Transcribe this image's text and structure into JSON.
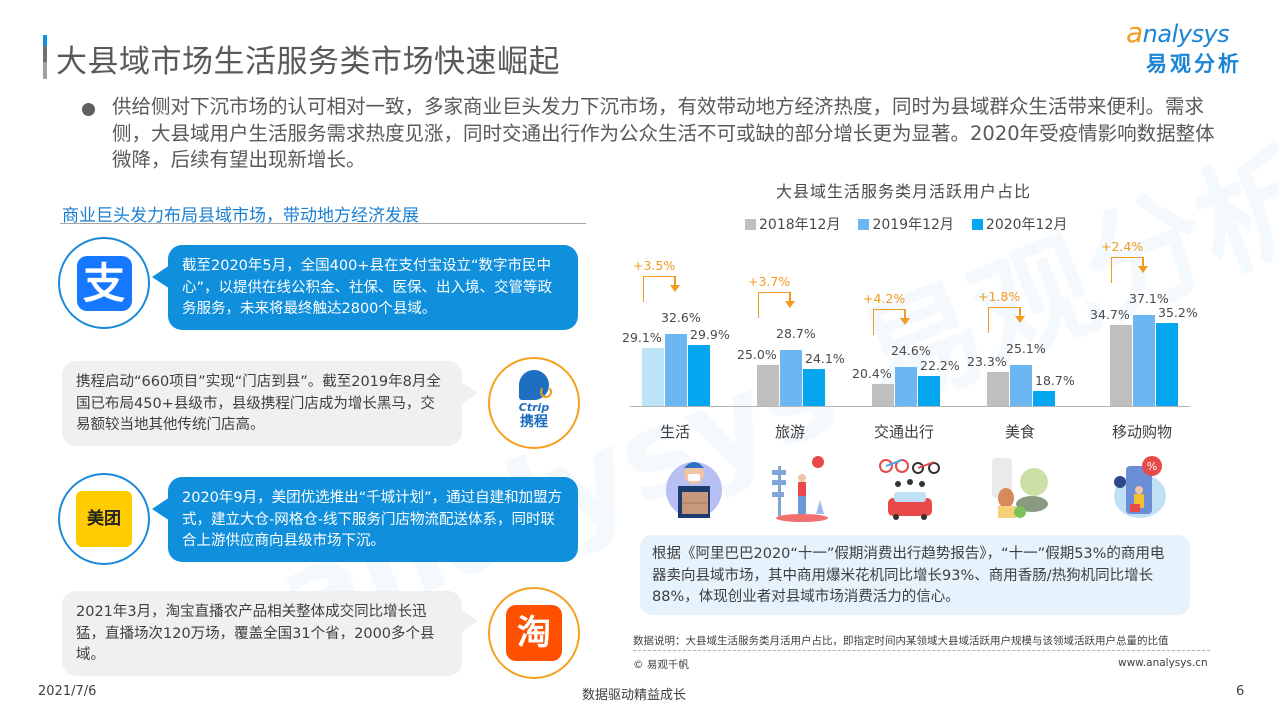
{
  "header": {
    "title": "大县域市场生活服务类市场快速崛起",
    "logo_en": "nalysys",
    "logo_en_initial": "a",
    "logo_cn": "易观分析"
  },
  "intro": {
    "text": "供给侧对下沉市场的认可相对一致，多家商业巨头发力下沉市场，有效带动地方经济热度，同时为县域群众生活带来便利。需求侧，大县域用户生活服务需求热度见涨，同时交通出行作为公众生活不可或缺的部分增长更为显著。2020年受疫情影响数据整体微降，后续有望出现新增长。"
  },
  "left_panel": {
    "section_title": "商业巨头发力布局县域市场，带动地方经济发展",
    "cases": [
      {
        "brand": "alipay",
        "icon_glyph": "支",
        "text": "截至2020年5月，全国400+县在支付宝设立“数字市民中心”，以提供在线公积金、社保、医保、出入境、交管等政务服务，未来将最终触达2800个县域。"
      },
      {
        "brand": "ctrip",
        "icon_en": "Ctrip",
        "icon_cn": "携程",
        "text": "携程启动“660项目”实现“门店到县”。截至2019年8月全国已布局450+县级市，县级携程门店成为增长黑马，交易额较当地其他传统门店高。"
      },
      {
        "brand": "meituan",
        "icon_glyph": "美团",
        "text": "2020年9月，美团优选推出“千城计划”，通过自建和加盟方式，建立大仓-网格仓-线下服务门店物流配送体系，同时联合上游供应商向县级市场下沉。"
      },
      {
        "brand": "taobao",
        "icon_glyph": "淘",
        "text": "2021年3月，淘宝直播农产品相关整体成交同比增长迅猛，直播场次120万场，覆盖全国31个省，2000多个县域。"
      }
    ]
  },
  "chart_data": {
    "type": "bar",
    "title": "大县域生活服务类月活跃用户占比",
    "categories": [
      "生活",
      "旅游",
      "交通出行",
      "美食",
      "移动购物"
    ],
    "series": [
      {
        "name": "2018年12月",
        "color": "#bfbfbf",
        "values": [
          29.1,
          25.0,
          20.4,
          23.3,
          34.7
        ]
      },
      {
        "name": "2019年12月",
        "color": "#6cb7f2",
        "values": [
          32.6,
          28.7,
          24.6,
          25.1,
          37.1
        ]
      },
      {
        "name": "2020年12月",
        "color": "#05a6f0",
        "values": [
          29.9,
          24.1,
          22.2,
          18.7,
          35.2
        ]
      }
    ],
    "value_labels": {
      "s0": [
        "29.1%",
        "25.0%",
        "20.4%",
        "23.3%",
        "34.7%"
      ],
      "s1": [
        "32.6%",
        "28.7%",
        "24.6%",
        "25.1%",
        "37.1%"
      ],
      "s2": [
        "29.9%",
        "24.1%",
        "22.2%",
        "18.7%",
        "35.2%"
      ]
    },
    "growth_annotations": [
      "+3.5%",
      "+3.7%",
      "+4.2%",
      "+1.8%",
      "+2.4%"
    ],
    "annotation_color": "#f39a21",
    "legend_position": "top",
    "grid": false,
    "xlabel": "",
    "ylabel": ""
  },
  "illustrations": [
    "delivery-person-illustration",
    "traveler-signpost-illustration",
    "family-car-bikes-illustration",
    "groceries-food-illustration",
    "mobile-shopping-sale-illustration"
  ],
  "note_box": {
    "text": "根据《阿里巴巴2020“十一”假期消费出行趋势报告》，“十一”假期53%的商用电器卖向县域市场，其中商用爆米花机同比增长93%、商用香肠/热狗机同比增长88%，体现创业者对县域市场消费活力的信心。"
  },
  "source": {
    "data_note": "数据说明：大县域生活服务类月活用户占比，即指定时间内某领域大县域活跃用户规模与该领域活跃用户总量的比值",
    "copyright": "© 易观千帆",
    "website": "www.analysys.cn"
  },
  "footer": {
    "date": "2021/7/6",
    "slogan": "数据驱动精益成长",
    "page": "6"
  }
}
